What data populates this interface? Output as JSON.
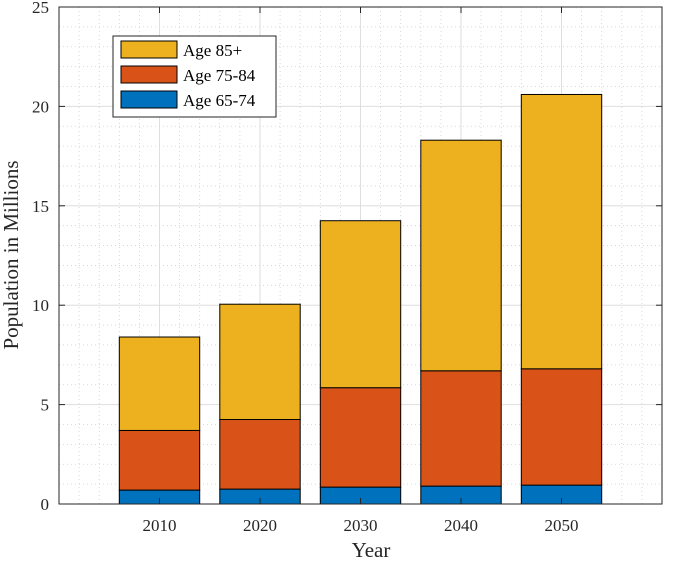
{
  "chart_data": {
    "type": "bar",
    "stacked": true,
    "categories": [
      "2010",
      "2020",
      "2030",
      "2040",
      "2050"
    ],
    "series": [
      {
        "name": "Age 65-74",
        "color": "#0072BD",
        "values": [
          0.7,
          0.75,
          0.85,
          0.9,
          0.95
        ]
      },
      {
        "name": "Age 75-84",
        "color": "#D95319",
        "values": [
          3.0,
          3.5,
          5.0,
          5.8,
          5.85
        ]
      },
      {
        "name": "Age 85+",
        "color": "#EDB120",
        "values": [
          4.7,
          5.8,
          8.4,
          11.6,
          13.8
        ]
      }
    ],
    "legend_order": [
      "Age 85+",
      "Age 75-84",
      "Age 65-74"
    ],
    "legend_position": "top-left",
    "xlabel": "Year",
    "ylabel": "Population in Millions",
    "ylim": [
      0,
      25
    ],
    "yticks": [
      0,
      5,
      10,
      15,
      20,
      25
    ],
    "xlim": [
      2000,
      2060
    ],
    "grid": true,
    "minor_grid": true
  }
}
